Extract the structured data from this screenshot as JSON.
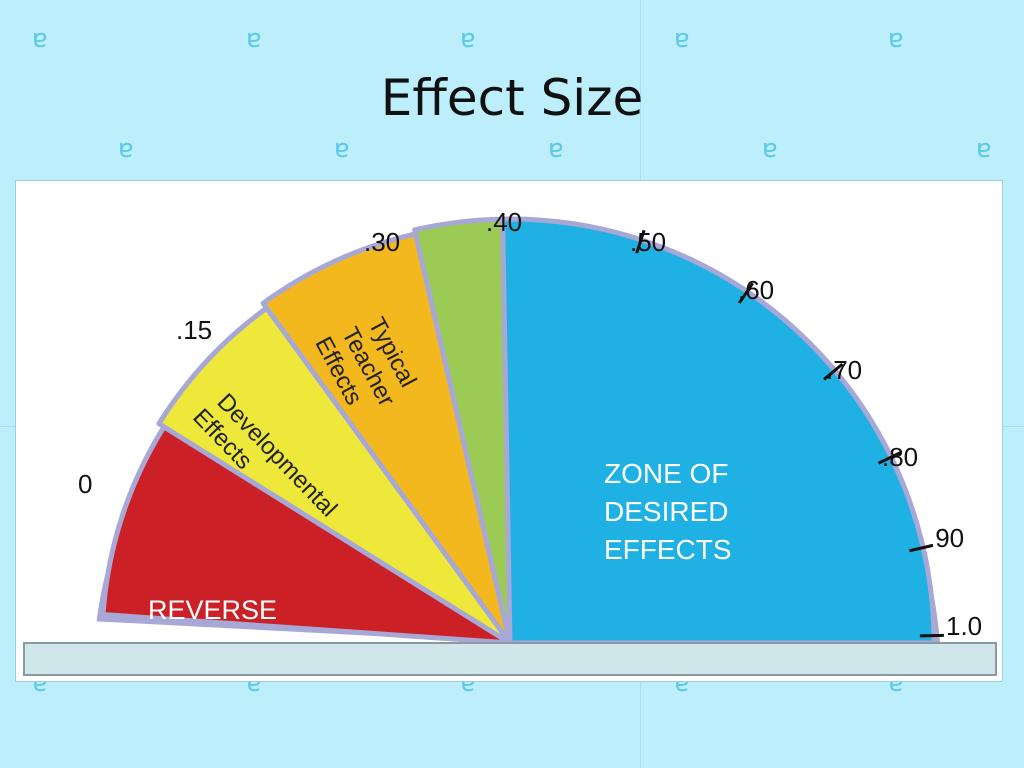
{
  "slide": {
    "title": "Effect Size"
  },
  "diagram": {
    "scale_labels": [
      ".15",
      ".30",
      ".40",
      ".50",
      ".60",
      ".70",
      ".80",
      ".90",
      "1.0",
      "0"
    ],
    "zones": {
      "reverse": "REVERSE",
      "developmental_line1": "Developmental",
      "developmental_line2": "Effects",
      "teacher_line1": "Typical",
      "teacher_line2": "Teacher",
      "teacher_line3": "Effects",
      "desired_line1": "ZONE OF",
      "desired_line2": "DESIRED",
      "desired_line3": "EFFECTS"
    }
  },
  "colors": {
    "background": "#bdeefc",
    "reverse": "#cc2027",
    "developmental": "#eee83a",
    "teacher": "#f2b81e",
    "hinge_zone": "#9ccb55",
    "desired": "#1fb0e4",
    "rim": "#a7a8d6",
    "base": "#cfe7ea"
  },
  "icons": {
    "background_ornament": "swirl-icon"
  }
}
